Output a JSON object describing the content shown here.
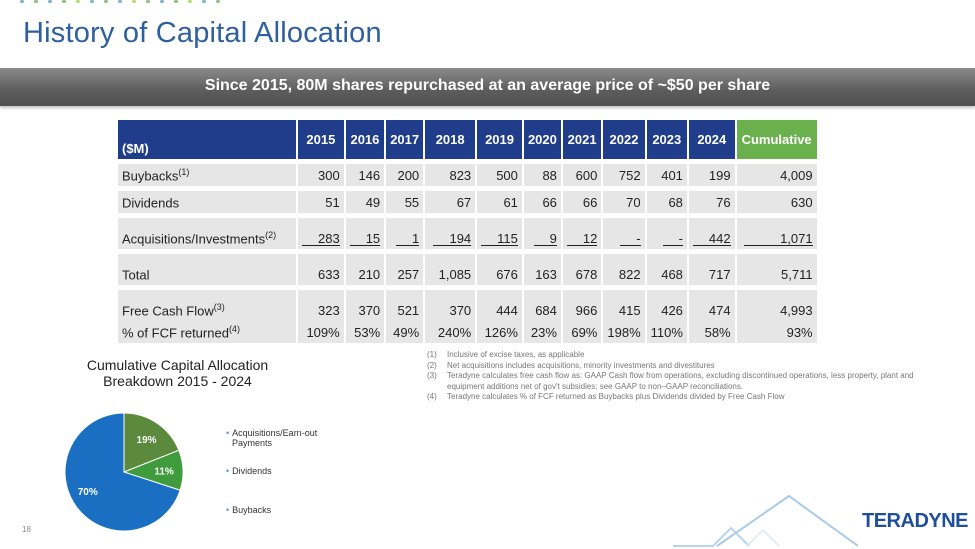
{
  "title": "History of Capital Allocation",
  "banner": "Since 2015, 80M shares repurchased at an average price of ~$50 per share",
  "table": {
    "corner_label": "($M)",
    "years": [
      "2015",
      "2016",
      "2017",
      "2018",
      "2019",
      "2020",
      "2021",
      "2022",
      "2023",
      "2024"
    ],
    "cumulative_label": "Cumulative",
    "rows": {
      "buybacks": {
        "label": "Buybacks",
        "note": "(1)",
        "values": [
          "300",
          "146",
          "200",
          "823",
          "500",
          "88",
          "600",
          "752",
          "401",
          "199"
        ],
        "cumulative": "4,009"
      },
      "dividends": {
        "label": "Dividends",
        "note": "",
        "values": [
          "51",
          "49",
          "55",
          "67",
          "61",
          "66",
          "66",
          "70",
          "68",
          "76"
        ],
        "cumulative": "630"
      },
      "acquisitions": {
        "label": "Acquisitions/Investments",
        "note": "(2)",
        "values": [
          "283",
          "15",
          "1",
          "194",
          "115",
          "9",
          "12",
          "-",
          "-",
          "442"
        ],
        "cumulative": "1,071"
      },
      "total": {
        "label": "Total",
        "note": "",
        "values": [
          "633",
          "210",
          "257",
          "1,085",
          "676",
          "163",
          "678",
          "822",
          "468",
          "717"
        ],
        "cumulative": "5,711"
      },
      "fcf": {
        "label": "Free Cash Flow",
        "note": "(3)",
        "values": [
          "323",
          "370",
          "521",
          "370",
          "444",
          "684",
          "966",
          "415",
          "426",
          "474"
        ],
        "cumulative": "4,993"
      },
      "pct": {
        "label": "% of FCF returned",
        "note": "(4)",
        "values": [
          "109%",
          "53%",
          "49%",
          "240%",
          "126%",
          "23%",
          "69%",
          "198%",
          "110%",
          "58%"
        ],
        "cumulative": "93%"
      }
    }
  },
  "pie": {
    "title_line1": "Cumulative Capital Allocation",
    "title_line2": "Breakdown 2015 - 2024",
    "slices": [
      {
        "label": "Acquisitions/Earn-out Payments",
        "legend_line1": "Acquisitions/Earn-out",
        "legend_line2": "Payments",
        "value": 19,
        "text": "19%",
        "color": "#5b8a3c"
      },
      {
        "label": "Dividends",
        "value": 11,
        "text": "11%",
        "color": "#3f9b3c"
      },
      {
        "label": "Buybacks",
        "value": 70,
        "text": "70%",
        "color": "#1a6fc2"
      }
    ]
  },
  "footnotes": [
    {
      "num": "(1)",
      "text": "Inclusive of excise taxes, as applicable"
    },
    {
      "num": "(2)",
      "text": "Net acquisitions includes acquisitions, minority investments and divestitures"
    },
    {
      "num": "(3)",
      "text": "Teradyne calculates free cash flow as: GAAP Cash flow from operations, excluding discontinued operations, less property, plant and equipment additions net of gov't subsidies; see GAAP to non–GAAP reconciliations."
    },
    {
      "num": "(4)",
      "text": "Teradyne calculates % of FCF returned as Buybacks plus Dividends divided by Free Cash Flow"
    }
  ],
  "page_number": "18",
  "brand": "TERADYNE",
  "colors": {
    "header_blue": "#1f3d8a",
    "cumulative_green": "#6ab04c",
    "title_blue": "#2e5f9e"
  }
}
